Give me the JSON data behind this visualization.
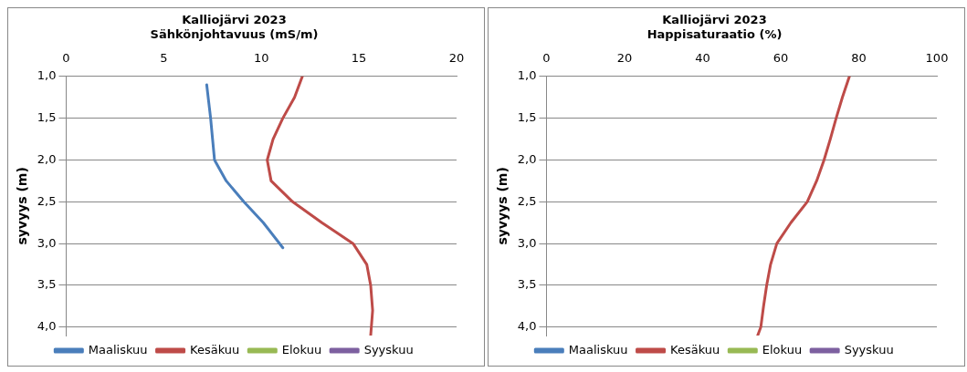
{
  "chart_data": [
    {
      "type": "line",
      "title": "Kalliojärvi 2023",
      "subtitle": "Sähkönjohtavuus (mS/m)",
      "ylabel": "syvyys (m)",
      "xlim": [
        0,
        20
      ],
      "xticks": [
        0,
        5,
        10,
        15,
        20
      ],
      "ylim": [
        4.1,
        1.0
      ],
      "yticks": [
        {
          "value": 1,
          "label": "1,0"
        },
        {
          "value": 1.5,
          "label": "1,5"
        },
        {
          "value": 2,
          "label": "2,0"
        },
        {
          "value": 2.5,
          "label": "2,5"
        },
        {
          "value": 3,
          "label": "3,0"
        },
        {
          "value": 3.5,
          "label": "3,5"
        },
        {
          "value": 4,
          "label": "4,0"
        }
      ],
      "grid": "y",
      "legend": "bottom",
      "marker": "none",
      "line_style": "solid",
      "series": [
        {
          "name": "Maaliskuu",
          "color": "#4a7ebb",
          "x": [
            7.2,
            7.3,
            7.4,
            7.5,
            7.6,
            8.2,
            9.1,
            10.1,
            11.1
          ],
          "values": [
            1.1,
            1.3,
            1.5,
            1.75,
            2.0,
            2.25,
            2.5,
            2.75,
            3.05
          ]
        },
        {
          "name": "Kesäkuu",
          "color": "#be4b48",
          "x": [
            12.1,
            11.7,
            11.1,
            10.6,
            10.3,
            10.5,
            11.6,
            13.1,
            14.7,
            15.4,
            15.6,
            15.7,
            15.6
          ],
          "values": [
            1.0,
            1.25,
            1.5,
            1.75,
            2.0,
            2.25,
            2.5,
            2.75,
            3.0,
            3.25,
            3.5,
            3.8,
            4.1
          ]
        },
        {
          "name": "Elokuu",
          "color": "#98b954"
        },
        {
          "name": "Syyskuu",
          "color": "#7d60a0"
        }
      ]
    },
    {
      "type": "line",
      "title": "Kalliojärvi 2023",
      "subtitle": "Happisaturaatio (%)",
      "ylabel": "syvyys (m)",
      "xlim": [
        0,
        100
      ],
      "xticks": [
        0,
        20,
        40,
        60,
        80,
        100
      ],
      "ylim": [
        4.1,
        1.0
      ],
      "yticks": [
        {
          "value": 1,
          "label": "1,0"
        },
        {
          "value": 1.5,
          "label": "1,5"
        },
        {
          "value": 2,
          "label": "2,0"
        },
        {
          "value": 2.5,
          "label": "2,5"
        },
        {
          "value": 3,
          "label": "3,0"
        },
        {
          "value": 3.5,
          "label": "3,5"
        },
        {
          "value": 4,
          "label": "4,0"
        }
      ],
      "grid": "y",
      "legend": "bottom",
      "marker": "none",
      "line_style": "solid",
      "series": [
        {
          "name": "Maaliskuu",
          "color": "#4a7ebb"
        },
        {
          "name": "Kesäkuu",
          "color": "#be4b48",
          "x": [
            77.6,
            75.8,
            74.2,
            72.7,
            71.1,
            69.2,
            66.8,
            62.6,
            59.0,
            57.4,
            56.4,
            55.6,
            54.9,
            54.1
          ],
          "values": [
            1.0,
            1.25,
            1.5,
            1.75,
            2.0,
            2.25,
            2.5,
            2.75,
            3.0,
            3.25,
            3.5,
            3.75,
            4.0,
            4.1
          ]
        },
        {
          "name": "Elokuu",
          "color": "#98b954"
        },
        {
          "name": "Syyskuu",
          "color": "#7d60a0"
        }
      ]
    }
  ]
}
